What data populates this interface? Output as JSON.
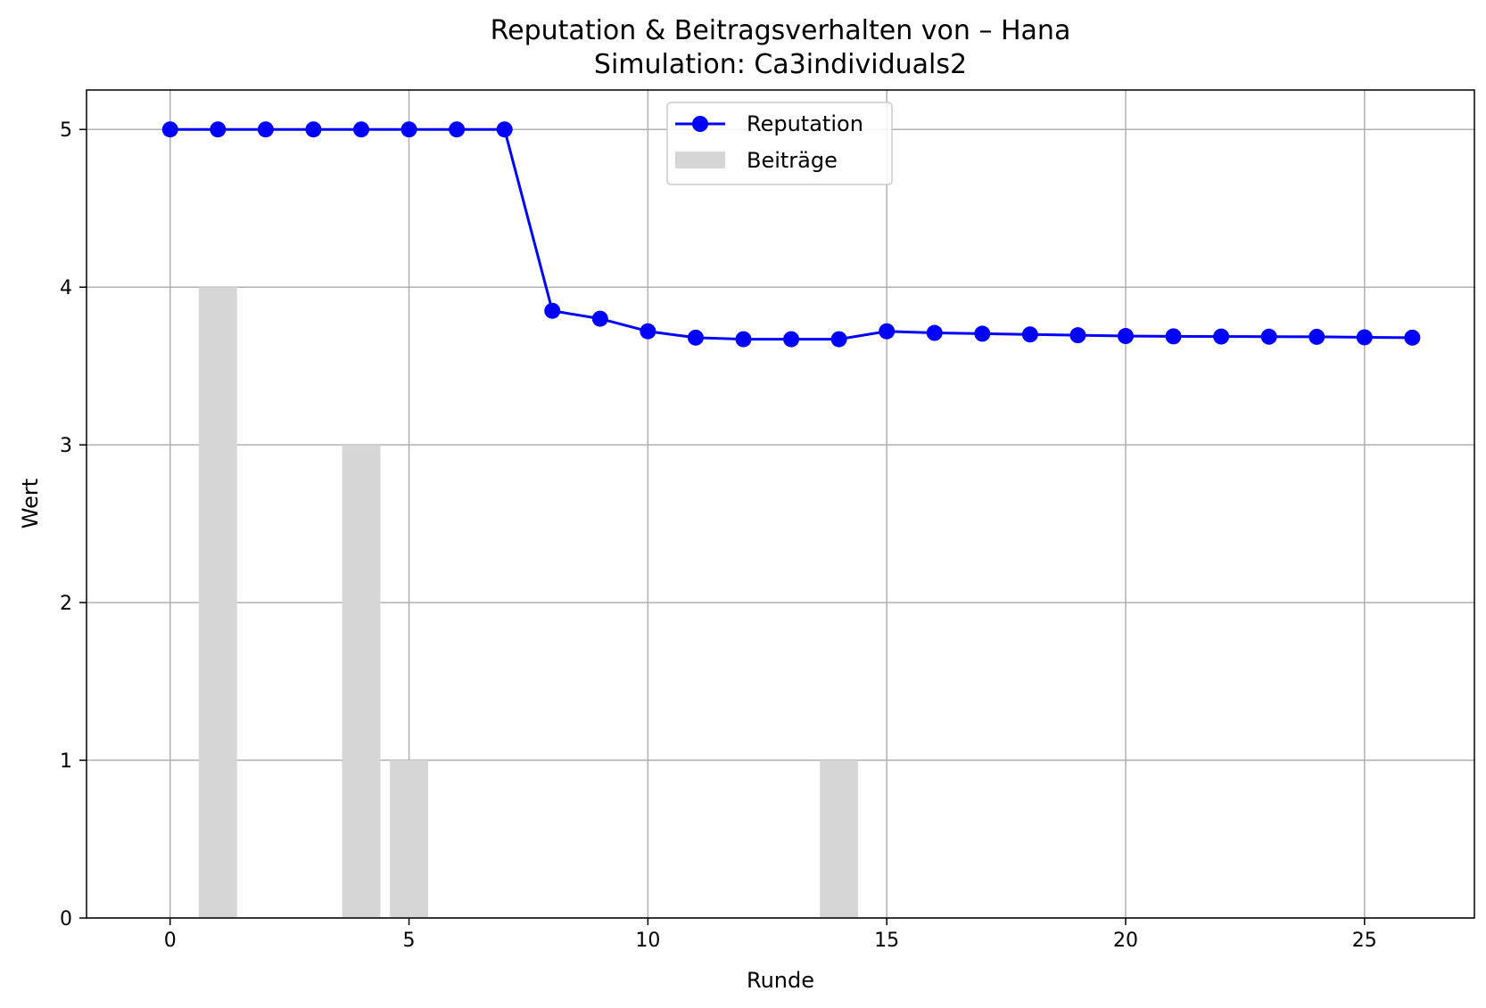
{
  "chart_data": {
    "type": "line",
    "title": "Reputation & Beitragsverhalten von – Hana",
    "subtitle": "Simulation: Ca3individuals2",
    "xlabel": "Runde",
    "ylabel": "Wert",
    "xlim": [
      -1.75,
      27.3
    ],
    "ylim": [
      0,
      5.25
    ],
    "xticks": [
      0,
      5,
      10,
      15,
      20,
      25
    ],
    "yticks": [
      0,
      1,
      2,
      3,
      4,
      5
    ],
    "grid": true,
    "legend_position": "top-center",
    "series": [
      {
        "name": "Reputation",
        "kind": "line",
        "marker": "circle",
        "color": "#0000ff",
        "x": [
          0,
          1,
          2,
          3,
          4,
          5,
          6,
          7,
          8,
          9,
          10,
          11,
          12,
          13,
          14,
          15,
          16,
          17,
          18,
          19,
          20,
          21,
          22,
          23,
          24,
          25,
          26
        ],
        "values": [
          5.0,
          5.0,
          5.0,
          5.0,
          5.0,
          5.0,
          5.0,
          5.0,
          3.85,
          3.8,
          3.72,
          3.68,
          3.67,
          3.67,
          3.67,
          3.72,
          3.71,
          3.705,
          3.7,
          3.695,
          3.69,
          3.688,
          3.687,
          3.686,
          3.685,
          3.682,
          3.68
        ]
      },
      {
        "name": "Beiträge",
        "kind": "bar",
        "color": "#d6d6d6",
        "x": [
          0,
          1,
          2,
          3,
          4,
          5,
          6,
          7,
          8,
          9,
          10,
          11,
          12,
          13,
          14,
          15,
          16,
          17,
          18,
          19,
          20,
          21,
          22,
          23,
          24,
          25,
          26
        ],
        "values": [
          0,
          4,
          0,
          0,
          3,
          1,
          0,
          0,
          0,
          0,
          0,
          0,
          0,
          0,
          1,
          0,
          0,
          0,
          0,
          0,
          0,
          0,
          0,
          0,
          0,
          0,
          0
        ]
      }
    ]
  }
}
